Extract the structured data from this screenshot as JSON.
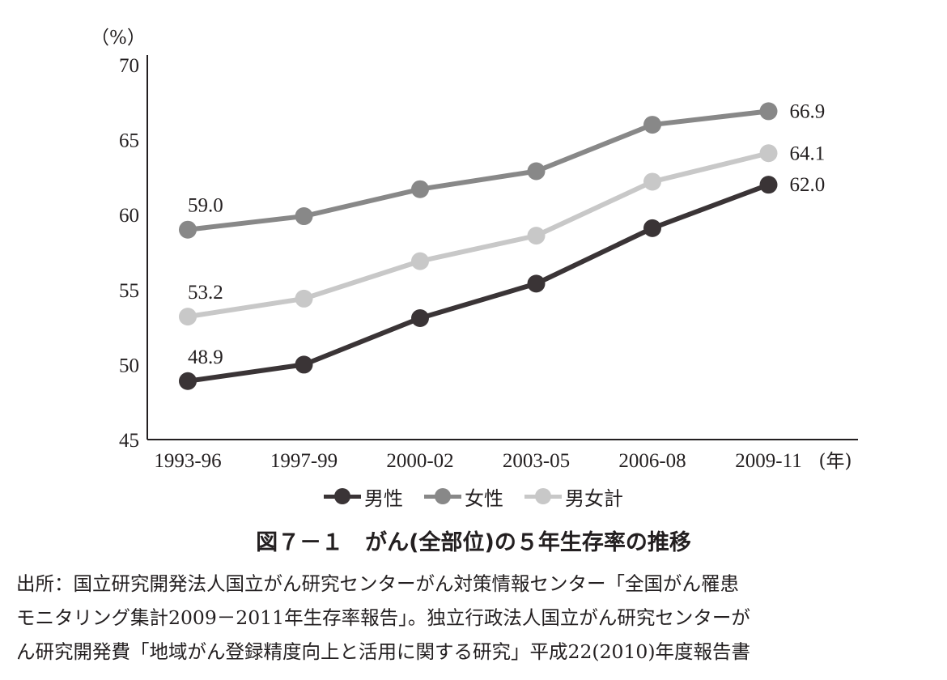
{
  "chart_data": {
    "type": "line",
    "unit_label": "（%）",
    "x_unit_label": "(年)",
    "categories": [
      "1993-96",
      "1997-99",
      "2000-02",
      "2003-05",
      "2006-08",
      "2009-11"
    ],
    "y_ticks": [
      "45",
      "50",
      "55",
      "60",
      "65",
      "70"
    ],
    "ylim": [
      45,
      70
    ],
    "grid": false,
    "legend_position": "bottom",
    "series": [
      {
        "name": "男性",
        "color": "#3a3436",
        "values": [
          48.9,
          50.0,
          53.1,
          55.4,
          59.1,
          62.0
        ],
        "data_labels": [
          {
            "index": 0,
            "text": "48.9"
          },
          {
            "index": 5,
            "text": "62.0"
          }
        ]
      },
      {
        "name": "女性",
        "color": "#888888",
        "values": [
          59.0,
          59.9,
          61.7,
          62.9,
          66.0,
          66.9
        ],
        "data_labels": [
          {
            "index": 0,
            "text": "59.0"
          },
          {
            "index": 5,
            "text": "66.9"
          }
        ]
      },
      {
        "name": "男女計",
        "color": "#c8c8c8",
        "values": [
          53.2,
          54.4,
          56.9,
          58.6,
          62.2,
          64.1
        ],
        "data_labels": [
          {
            "index": 0,
            "text": "53.2"
          },
          {
            "index": 5,
            "text": "64.1"
          }
        ]
      }
    ],
    "legend_order": [
      0,
      1,
      2
    ]
  },
  "caption": "図７－１　がん(全部位)の５年生存率の推移",
  "source_lines": [
    "出所：国立研究開発法人国立がん研究センターがん対策情報センター「全国がん罹患",
    "モニタリング集計2009－2011年生存率報告」。独立行政法人国立がん研究センターが",
    "ん研究開発費「地域がん登録精度向上と活用に関する研究」平成22(2010)年度報告書"
  ]
}
